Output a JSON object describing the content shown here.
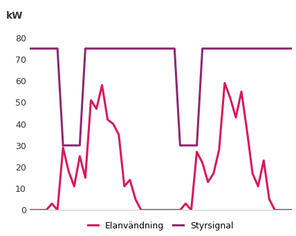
{
  "chart_data": {
    "type": "line",
    "y_label": "kW",
    "x": [
      0,
      1,
      2,
      3,
      4,
      5,
      6,
      7,
      8,
      9,
      10,
      11,
      12,
      13,
      14,
      15,
      16,
      17,
      18,
      19,
      20,
      21,
      22,
      23,
      24,
      25,
      26,
      27,
      28,
      29,
      30,
      31,
      32,
      33,
      34,
      35,
      36,
      37,
      38,
      39,
      40,
      41,
      42,
      43,
      44,
      45,
      46,
      47
    ],
    "series": [
      {
        "name": "Elanvändning",
        "color": "#d6195f",
        "values": [
          0,
          0,
          0,
          0,
          3,
          0,
          29,
          18,
          11,
          25,
          15,
          51,
          47,
          58,
          42,
          40,
          35,
          11,
          14,
          5,
          0,
          0,
          0,
          0,
          0,
          0,
          0,
          0,
          3,
          0,
          27,
          22,
          13,
          17,
          28,
          59,
          52,
          43,
          55,
          37,
          17,
          11,
          23,
          5,
          0,
          0,
          0,
          0
        ]
      },
      {
        "name": "Styrsignal",
        "color": "#8e2a6f",
        "values": [
          75,
          75,
          75,
          75,
          75,
          75,
          30,
          30,
          30,
          30,
          75,
          75,
          75,
          75,
          75,
          75,
          75,
          75,
          75,
          75,
          75,
          75,
          75,
          75,
          75,
          75,
          75,
          30,
          30,
          30,
          30,
          75,
          75,
          75,
          75,
          75,
          75,
          75,
          75,
          75,
          75,
          75,
          75,
          75,
          75,
          75,
          75,
          75
        ]
      }
    ],
    "xlim": [
      0,
      47
    ],
    "ylim": [
      0,
      80
    ],
    "yticks": [
      0,
      10,
      20,
      30,
      40,
      50,
      60,
      70,
      80
    ],
    "grid": false,
    "legend": "bottom",
    "tick_labels": "y"
  }
}
